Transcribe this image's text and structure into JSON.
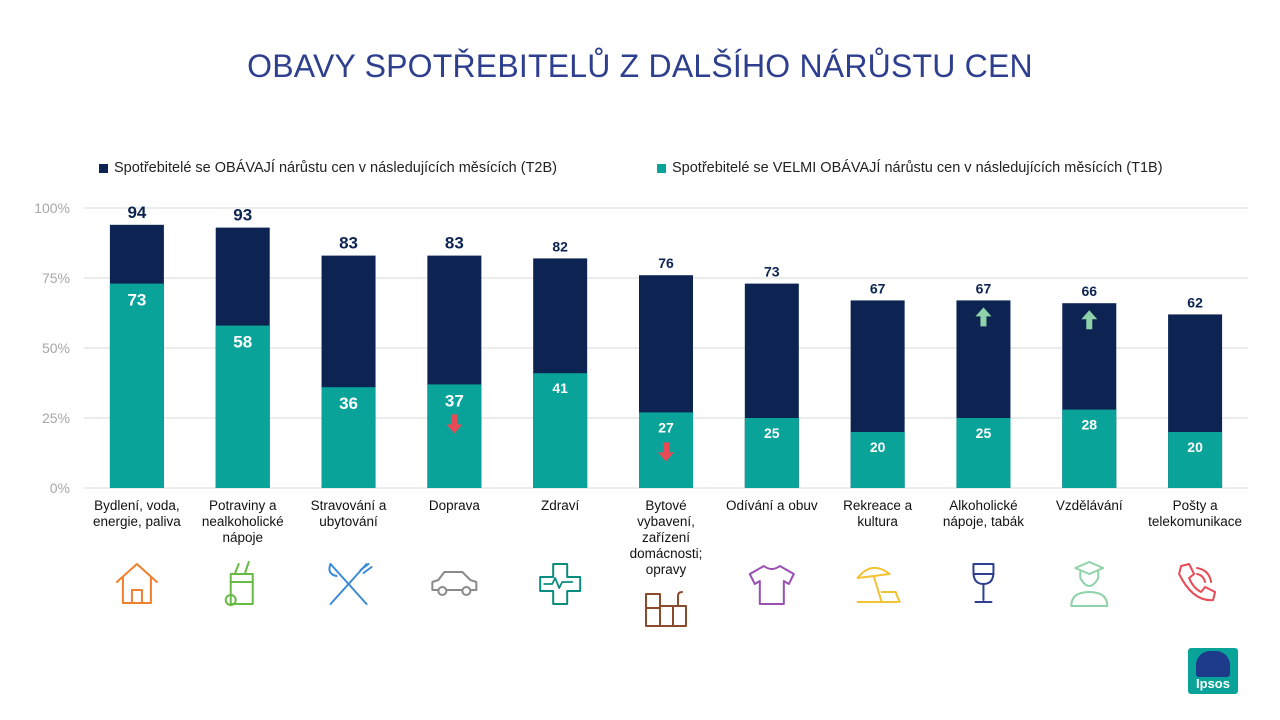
{
  "title": "OBAVY SPOTŘEBITELŮ Z DALŠÍHO NÁRŮSTU CEN",
  "logo_text": "Ipsos",
  "colors": {
    "title": "#2e3f8f",
    "t2b": "#0d2452",
    "t1b": "#0aa39a",
    "grid": "#d9d9d9",
    "tick": "#a6a6a6",
    "arrow_up": "#8fd2a9",
    "arrow_down": "#e84b56"
  },
  "chart_data": {
    "type": "bar",
    "stacking": "overlay",
    "title": "OBAVY SPOTŘEBITELŮ Z DALŠÍHO NÁRŮSTU CEN",
    "legend_position": "top",
    "grid": true,
    "ylim": [
      0,
      100
    ],
    "yticks": [
      "0%",
      "25%",
      "50%",
      "75%",
      "100%"
    ],
    "ytick_values": [
      0,
      25,
      50,
      75,
      100
    ],
    "categories": [
      "Bydlení, voda, energie, paliva",
      "Potraviny a nealkoholické nápoje",
      "Stravování a ubytování",
      "Doprava",
      "Zdraví",
      "Bytové vybavení, zařízení domácnosti; opravy",
      "Odívání a obuv",
      "Rekreace a kultura",
      "Alkoholické nápoje, tabák",
      "Vzdělávání",
      "Pošty a telekomunikace"
    ],
    "category_icons": [
      "house-icon",
      "grocery-bag-icon",
      "fork-knife-icon",
      "car-icon",
      "health-cross-icon",
      "kitchen-icon",
      "tshirt-icon",
      "beach-umbrella-icon",
      "wine-glass-icon",
      "graduate-icon",
      "phone-icon"
    ],
    "series": [
      {
        "name": "Spotřebitelé se OBÁVAJÍ nárůstu cen v následujících měsících (T2B)",
        "color": "#0d2452",
        "values": [
          94,
          93,
          83,
          83,
          82,
          76,
          73,
          67,
          67,
          66,
          62
        ]
      },
      {
        "name": "Spotřebitelé se VELMI OBÁVAJÍ nárůstu cen v následujících měsících (T1B)",
        "color": "#0aa39a",
        "values": [
          73,
          58,
          36,
          37,
          41,
          27,
          25,
          20,
          25,
          28,
          20
        ]
      }
    ],
    "change_arrows": [
      "",
      "",
      "",
      "down",
      "",
      "down",
      "",
      "",
      "up",
      "up",
      ""
    ]
  }
}
